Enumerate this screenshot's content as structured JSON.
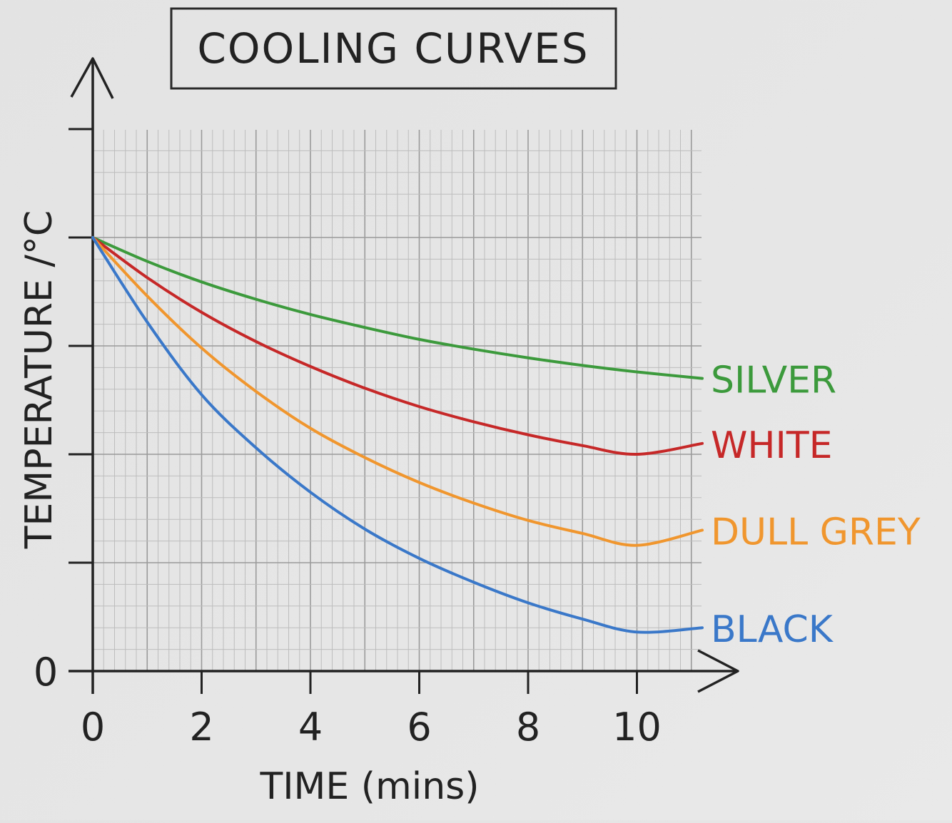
{
  "chart_data": {
    "type": "line",
    "title": "COOLING CURVES",
    "xlabel": "TIME (mins)",
    "ylabel": "TEMPERATURE /°C",
    "xlim": [
      0,
      11.2
    ],
    "ylim": [
      0,
      5
    ],
    "x_ticks": [
      0,
      2,
      4,
      6,
      8,
      10
    ],
    "y_tick_labels": [
      "0"
    ],
    "y_major_ticks": [
      1,
      2,
      3,
      4,
      5
    ],
    "grid": true,
    "legend": "series labels at right end of each line",
    "series": [
      {
        "name": "SILVER",
        "color": "#3c9a3c",
        "x": [
          0,
          1,
          2,
          3,
          4,
          5,
          6,
          7,
          8,
          9,
          10,
          11.2
        ],
        "y": [
          4.0,
          3.78,
          3.59,
          3.43,
          3.29,
          3.17,
          3.06,
          2.97,
          2.89,
          2.82,
          2.76,
          2.7
        ]
      },
      {
        "name": "WHITE",
        "color": "#c62828",
        "x": [
          0,
          1,
          2,
          3,
          4,
          5,
          6,
          7,
          8,
          9,
          10,
          11.2
        ],
        "y": [
          4.0,
          3.63,
          3.31,
          3.04,
          2.81,
          2.61,
          2.44,
          2.3,
          2.18,
          2.08,
          2.0,
          2.1
        ]
      },
      {
        "name": "DULL GREY",
        "color": "#f0962e",
        "x": [
          0,
          1,
          2,
          3,
          4,
          5,
          6,
          7,
          8,
          9,
          10,
          11.2
        ],
        "y": [
          4.0,
          3.46,
          2.98,
          2.58,
          2.24,
          1.97,
          1.74,
          1.55,
          1.39,
          1.27,
          1.16,
          1.3
        ]
      },
      {
        "name": "BLACK",
        "color": "#3a78c9",
        "x": [
          0,
          1,
          2,
          3,
          4,
          5,
          6,
          7,
          8,
          9,
          10,
          11.2
        ],
        "y": [
          4.0,
          3.22,
          2.55,
          2.06,
          1.65,
          1.31,
          1.04,
          0.82,
          0.63,
          0.48,
          0.36,
          0.4
        ]
      }
    ]
  }
}
